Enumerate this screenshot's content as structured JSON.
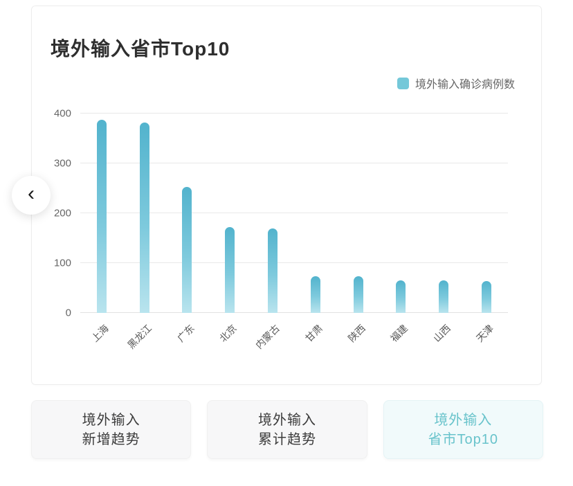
{
  "card": {
    "title": "境外输入省市Top10"
  },
  "legend": {
    "label": "境外输入确诊病例数",
    "marker_color": "#74c8d9"
  },
  "chart_data": {
    "type": "bar",
    "title": "境外输入省市Top10",
    "legend": "境外输入确诊病例数",
    "legend_position": "top-right",
    "categories": [
      "上海",
      "黑龙江",
      "广东",
      "北京",
      "内蒙古",
      "甘肃",
      "陕西",
      "福建",
      "山西",
      "天津"
    ],
    "values": [
      388,
      382,
      253,
      172,
      170,
      73,
      73,
      65,
      65,
      64
    ],
    "xlabel": "",
    "ylabel": "",
    "ylim": [
      0,
      400
    ],
    "yticks": [
      0,
      100,
      200,
      300,
      400
    ],
    "grid": true,
    "x_label_rotation": -45,
    "bar_color_top": "#52b3cd",
    "bar_color_bottom": "#b9e4ee"
  },
  "nav": {
    "back_glyph": "‹"
  },
  "tabs": [
    {
      "line1": "境外输入",
      "line2": "新增趋势",
      "active": false
    },
    {
      "line1": "境外输入",
      "line2": "累计趋势",
      "active": false
    },
    {
      "line1": "境外输入",
      "line2": "省市Top10",
      "active": true
    }
  ]
}
